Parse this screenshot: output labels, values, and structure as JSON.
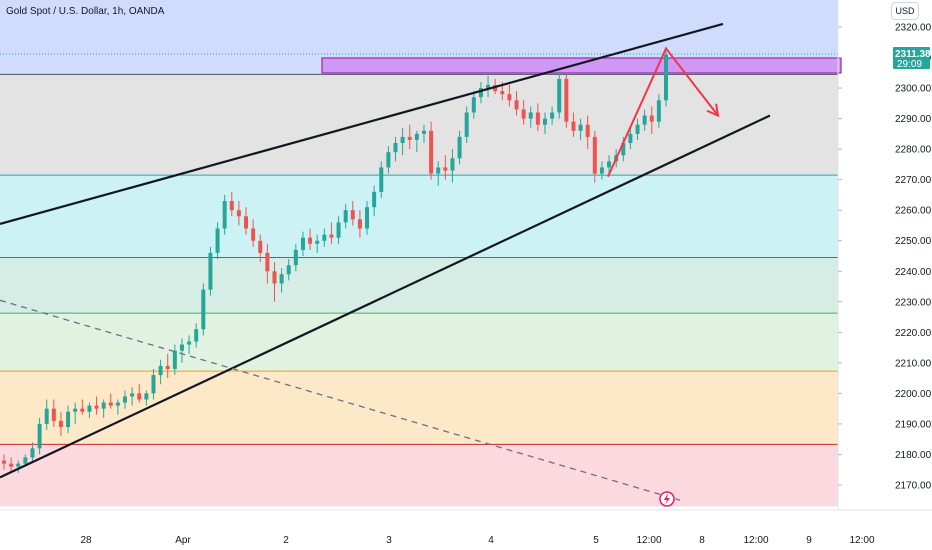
{
  "chart_data": {
    "type": "candlestick",
    "title": "Gold Spot / U.S. Dollar, 1h, OANDA",
    "currency": "USD",
    "last_price": "2311.380",
    "countdown": "29:09",
    "y_axis": {
      "range": [
        2163,
        2329
      ],
      "ticks": [
        "2320.00",
        "2310.00",
        "2300.00",
        "2290.00",
        "2280.00",
        "2270.00",
        "2260.00",
        "2250.00",
        "2240.00",
        "2230.00",
        "2220.00",
        "2210.00",
        "2200.00",
        "2190.00",
        "2180.00",
        "2170.00"
      ]
    },
    "x_axis": {
      "ticks": [
        "28",
        "Apr",
        "2",
        "3",
        "4",
        "5",
        "12:00",
        "8",
        "12:00",
        "9",
        "12:00"
      ]
    },
    "zones": [
      {
        "from": 2304.5,
        "to": 2329,
        "color": "#cfdcfc"
      },
      {
        "from": 2271.5,
        "to": 2304.5,
        "color": "#e3e3e3"
      },
      {
        "from": 2244.5,
        "to": 2271.5,
        "color": "#cdf2f5"
      },
      {
        "from": 2226.3,
        "to": 2244.5,
        "color": "#d6ede6"
      },
      {
        "from": 2207.3,
        "to": 2226.3,
        "color": "#e0f2e0"
      },
      {
        "from": 2183.3,
        "to": 2207.3,
        "color": "#fde9c8"
      },
      {
        "from": 2163,
        "to": 2183.3,
        "color": "#fbd9de"
      }
    ],
    "zone_lines": [
      {
        "value": 2304.5,
        "color": "#4b5563"
      },
      {
        "value": 2271.5,
        "color": "#26a6b0"
      },
      {
        "value": 2244.5,
        "color": "#1f8a70"
      },
      {
        "value": 2226.3,
        "color": "#4caf50"
      },
      {
        "value": 2207.3,
        "color": "#f59e0b"
      },
      {
        "value": 2183.3,
        "color": "#c62828"
      }
    ],
    "resistance_box": {
      "from": 2304.5,
      "to": 2306.3
    },
    "candles": [
      [
        2178,
        2180,
        2175,
        2177
      ],
      [
        2177,
        2179,
        2174,
        2176
      ],
      [
        2176,
        2178,
        2174,
        2177
      ],
      [
        2177,
        2180,
        2176,
        2179
      ],
      [
        2179,
        2184,
        2178,
        2182
      ],
      [
        2182,
        2192,
        2180,
        2190
      ],
      [
        2190,
        2198,
        2188,
        2195
      ],
      [
        2195,
        2198,
        2189,
        2191
      ],
      [
        2191,
        2194,
        2186,
        2189
      ],
      [
        2189,
        2196,
        2187,
        2194
      ],
      [
        2194,
        2197,
        2190,
        2195
      ],
      [
        2195,
        2198,
        2193,
        2194
      ],
      [
        2194,
        2197,
        2192,
        2196
      ],
      [
        2196,
        2199,
        2193,
        2195
      ],
      [
        2195,
        2198,
        2192,
        2197
      ],
      [
        2197,
        2200,
        2195,
        2196
      ],
      [
        2196,
        2198,
        2193,
        2197
      ],
      [
        2197,
        2201,
        2195,
        2199
      ],
      [
        2199,
        2202,
        2196,
        2200
      ],
      [
        2200,
        2203,
        2197,
        2198
      ],
      [
        2198,
        2201,
        2196,
        2200
      ],
      [
        2200,
        2208,
        2198,
        2206
      ],
      [
        2206,
        2211,
        2203,
        2209
      ],
      [
        2209,
        2213,
        2205,
        2208
      ],
      [
        2208,
        2216,
        2206,
        2214
      ],
      [
        2214,
        2218,
        2210,
        2216
      ],
      [
        2216,
        2219,
        2213,
        2217
      ],
      [
        2217,
        2223,
        2215,
        2221
      ],
      [
        2221,
        2236,
        2219,
        2234
      ],
      [
        2234,
        2248,
        2232,
        2246
      ],
      [
        2246,
        2256,
        2244,
        2254
      ],
      [
        2254,
        2265,
        2252,
        2263
      ],
      [
        2263,
        2266,
        2258,
        2260
      ],
      [
        2260,
        2263,
        2255,
        2258
      ],
      [
        2258,
        2261,
        2252,
        2254
      ],
      [
        2254,
        2257,
        2248,
        2250
      ],
      [
        2250,
        2252,
        2243,
        2246
      ],
      [
        2246,
        2249,
        2236,
        2240
      ],
      [
        2240,
        2243,
        2230,
        2236
      ],
      [
        2236,
        2241,
        2233,
        2239
      ],
      [
        2239,
        2244,
        2237,
        2242
      ],
      [
        2242,
        2249,
        2240,
        2247
      ],
      [
        2247,
        2253,
        2245,
        2251
      ],
      [
        2251,
        2254,
        2247,
        2249
      ],
      [
        2249,
        2252,
        2246,
        2250
      ],
      [
        2250,
        2254,
        2248,
        2252
      ],
      [
        2252,
        2256,
        2249,
        2251
      ],
      [
        2251,
        2258,
        2249,
        2256
      ],
      [
        2256,
        2262,
        2254,
        2260
      ],
      [
        2260,
        2263,
        2255,
        2257
      ],
      [
        2257,
        2260,
        2251,
        2254
      ],
      [
        2254,
        2263,
        2252,
        2261
      ],
      [
        2261,
        2268,
        2258,
        2266
      ],
      [
        2266,
        2276,
        2264,
        2274
      ],
      [
        2274,
        2281,
        2272,
        2279
      ],
      [
        2279,
        2284,
        2276,
        2282
      ],
      [
        2282,
        2287,
        2278,
        2284
      ],
      [
        2284,
        2288,
        2280,
        2283
      ],
      [
        2283,
        2286,
        2279,
        2285
      ],
      [
        2285,
        2288,
        2282,
        2286
      ],
      [
        2286,
        2289,
        2270,
        2272
      ],
      [
        2272,
        2276,
        2268,
        2274
      ],
      [
        2274,
        2278,
        2270,
        2273
      ],
      [
        2273,
        2280,
        2269,
        2277
      ],
      [
        2277,
        2286,
        2275,
        2284
      ],
      [
        2284,
        2294,
        2282,
        2292
      ],
      [
        2292,
        2299,
        2290,
        2297
      ],
      [
        2297,
        2302,
        2295,
        2300
      ],
      [
        2300,
        2304,
        2297,
        2301
      ],
      [
        2301,
        2303,
        2298,
        2299
      ],
      [
        2299,
        2302,
        2296,
        2298
      ],
      [
        2298,
        2301,
        2294,
        2296
      ],
      [
        2296,
        2299,
        2291,
        2293
      ],
      [
        2293,
        2296,
        2288,
        2290
      ],
      [
        2290,
        2294,
        2287,
        2292
      ],
      [
        2292,
        2295,
        2286,
        2288
      ],
      [
        2288,
        2292,
        2285,
        2290
      ],
      [
        2290,
        2294,
        2288,
        2292
      ],
      [
        2292,
        2305,
        2290,
        2303
      ],
      [
        2303,
        2305,
        2287,
        2289
      ],
      [
        2289,
        2292,
        2284,
        2286
      ],
      [
        2286,
        2290,
        2283,
        2288
      ],
      [
        2288,
        2291,
        2280,
        2284
      ],
      [
        2284,
        2286,
        2269,
        2272
      ],
      [
        2272,
        2276,
        2270,
        2274
      ],
      [
        2274,
        2278,
        2272,
        2276
      ],
      [
        2276,
        2280,
        2274,
        2278
      ],
      [
        2278,
        2284,
        2276,
        2282
      ],
      [
        2282,
        2287,
        2280,
        2285
      ],
      [
        2285,
        2290,
        2283,
        2288
      ],
      [
        2288,
        2293,
        2286,
        2291
      ],
      [
        2291,
        2294,
        2285,
        2289
      ],
      [
        2289,
        2298,
        2287,
        2296
      ],
      [
        2296,
        2312,
        2294,
        2311
      ]
    ],
    "trendlines": [
      {
        "name": "upper-channel-line",
        "color": "#131722",
        "from": [
          0,
          2255.5
        ],
        "to": [
          723,
          2321
        ]
      },
      {
        "name": "lower-channel-line",
        "color": "#131722",
        "from": [
          0,
          2172.5
        ],
        "to": [
          770,
          2291
        ]
      },
      {
        "name": "descending-dashed-line",
        "color": "#6b6f8a",
        "dashed": true,
        "from": [
          0,
          2230.5
        ],
        "to": [
          680,
          2165
        ]
      }
    ],
    "projection": {
      "color": "#f23645",
      "points": [
        [
          608,
          2271
        ],
        [
          666,
          2313
        ],
        [
          718,
          2291
        ]
      ]
    }
  }
}
